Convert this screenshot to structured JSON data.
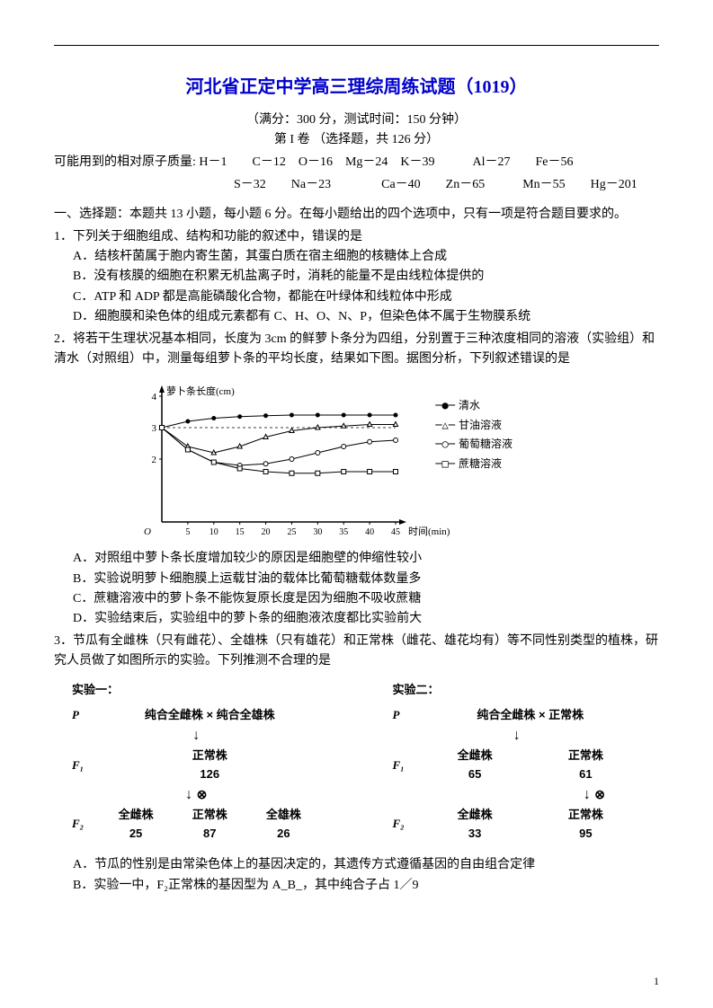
{
  "title": "河北省正定中学高三理综周练试题（1019）",
  "subtitle": "（满分：300 分，测试时间：150 分钟）",
  "part_title": "第 I 卷 （选择题，共 126 分）",
  "masses_line1": "可能用到的相对原子质量: H－1　　C－12　O－16　Mg－24　K－39　　　Al－27　　Fe－56",
  "masses_line2": "S－32　　Na－23　　　　Ca－40　　Zn－65　　　Mn－55　　Hg－201",
  "section_intro": "一、选择题：本题共 13 小题，每小题 6 分。在每小题给出的四个选项中，只有一项是符合题目要求的。",
  "q1": {
    "stem": "1．下列关于细胞组成、结构和功能的叙述中，错误的是",
    "a": "A．结核杆菌属于胞内寄生菌，其蛋白质在宿主细胞的核糖体上合成",
    "b": "B．没有核膜的细胞在积累无机盐离子时，消耗的能量不是由线粒体提供的",
    "c": "C．ATP 和 ADP 都是高能磷酸化合物，都能在叶绿体和线粒体中形成",
    "d": "D．细胞膜和染色体的组成元素都有 C、H、O、N、P，但染色体不属于生物膜系统"
  },
  "q2": {
    "stem": "2．将若干生理状况基本相同，长度为 3cm 的鲜萝卜条分为四组，分别置于三种浓度相同的溶液（实验组）和清水（对照组）中，测量每组萝卜条的平均长度，结果如下图。据图分析，下列叙述错误的是",
    "chart": {
      "y_label": "萝卜条长度(cm)",
      "x_label": "时间(min)",
      "y_min": 0,
      "y_max": 4,
      "y_ticks": [
        2,
        3,
        4
      ],
      "x_ticks": [
        5,
        10,
        15,
        20,
        25,
        30,
        35,
        40,
        45
      ],
      "dashed_y": 3,
      "legend": [
        {
          "marker": "●",
          "label": "清水"
        },
        {
          "marker": "△",
          "label": "甘油溶液"
        },
        {
          "marker": "○",
          "label": "葡萄糖溶液"
        },
        {
          "marker": "□",
          "label": "蔗糖溶液"
        }
      ],
      "series": {
        "water": {
          "marker": "●",
          "pts": [
            [
              0,
              3.0
            ],
            [
              5,
              3.2
            ],
            [
              10,
              3.3
            ],
            [
              15,
              3.35
            ],
            [
              20,
              3.38
            ],
            [
              25,
              3.4
            ],
            [
              30,
              3.4
            ],
            [
              35,
              3.4
            ],
            [
              40,
              3.4
            ],
            [
              45,
              3.4
            ]
          ]
        },
        "glycerol": {
          "marker": "△",
          "pts": [
            [
              0,
              3.0
            ],
            [
              5,
              2.4
            ],
            [
              10,
              2.2
            ],
            [
              15,
              2.4
            ],
            [
              20,
              2.7
            ],
            [
              25,
              2.9
            ],
            [
              30,
              3.0
            ],
            [
              35,
              3.05
            ],
            [
              40,
              3.1
            ],
            [
              45,
              3.1
            ]
          ]
        },
        "glucose": {
          "marker": "○",
          "pts": [
            [
              0,
              3.0
            ],
            [
              5,
              2.3
            ],
            [
              10,
              1.9
            ],
            [
              15,
              1.8
            ],
            [
              20,
              1.85
            ],
            [
              25,
              2.0
            ],
            [
              30,
              2.2
            ],
            [
              35,
              2.4
            ],
            [
              40,
              2.55
            ],
            [
              45,
              2.6
            ]
          ]
        },
        "sucrose": {
          "marker": "□",
          "pts": [
            [
              0,
              3.0
            ],
            [
              5,
              2.3
            ],
            [
              10,
              1.9
            ],
            [
              15,
              1.7
            ],
            [
              20,
              1.6
            ],
            [
              25,
              1.55
            ],
            [
              30,
              1.55
            ],
            [
              35,
              1.6
            ],
            [
              40,
              1.6
            ],
            [
              45,
              1.6
            ]
          ]
        }
      }
    },
    "a": "A．对照组中萝卜条长度增加较少的原因是细胞壁的伸缩性较小",
    "b": "B．实验说明萝卜细胞膜上运载甘油的载体比葡萄糖载体数量多",
    "c": "C．蔗糖溶液中的萝卜条不能恢复原长度是因为细胞不吸收蔗糖",
    "d": "D．实验结束后，实验组中的萝卜条的细胞液浓度都比实验前大"
  },
  "q3": {
    "stem": "3．节瓜有全雌株（只有雌花）、全雄株（只有雄花）和正常株（雌花、雄花均有）等不同性别类型的植株，研究人员做了如图所示的实验。下列推测不合理的是",
    "exp1": {
      "title": "实验一：",
      "p": "纯合全雌株 × 纯合全雄株",
      "f1": "正常株",
      "f1_n": "126",
      "f2_left": "全雌株",
      "f2_left_n": "25",
      "f2_mid": "正常株",
      "f2_mid_n": "87",
      "f2_right": "全雄株",
      "f2_right_n": "26"
    },
    "exp2": {
      "title": "实验二：",
      "p": "纯合全雌株 × 正常株",
      "f1_left": "全雌株",
      "f1_left_n": "65",
      "f1_right": "正常株",
      "f1_right_n": "61",
      "f2_left": "全雌株",
      "f2_left_n": "33",
      "f2_right": "正常株",
      "f2_right_n": "95"
    },
    "a": "A．节瓜的性别是由常染色体上的基因决定的，其遗传方式遵循基因的自由组合定律",
    "b": "B．实验一中，F₂正常株的基因型为 A_B_，其中纯合子占 1／9"
  },
  "labels": {
    "P": "P",
    "F1": "F₁",
    "F2": "F₂",
    "cross": "×",
    "otimes": "⊗"
  },
  "page_num": "1"
}
